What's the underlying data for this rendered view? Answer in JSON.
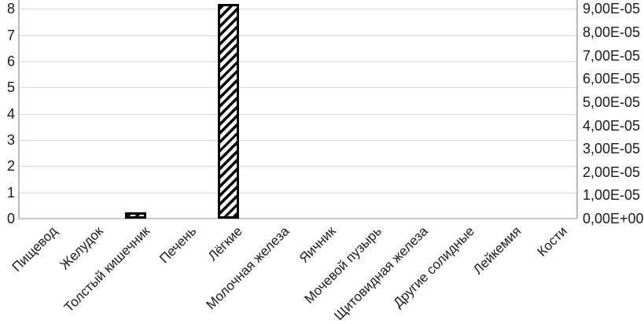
{
  "chart_data": {
    "type": "bar",
    "title": "",
    "xlabel": "",
    "ylabel": "",
    "categories": [
      "Пищевод",
      "Желудок",
      "Толстый кишечник",
      "Печень",
      "Лёгкие",
      "Молочная железа",
      "Яичник",
      "Мочевой пузырь",
      "Щитовидная железа",
      "Другие солидные",
      "Лейкемия",
      "Кости"
    ],
    "values": [
      0,
      0,
      0.25,
      0,
      8.2,
      0,
      0,
      0,
      0,
      0,
      0,
      0
    ],
    "series_note": "single hatched bar series; only Толстый кишечник (~0.25) and Лёгкие (~8.2, overshooting top gridline) are non-zero",
    "left_axis": {
      "min": 0,
      "max": 8,
      "tick_labels": [
        "0",
        "1",
        "2",
        "3",
        "4",
        "5",
        "6",
        "7",
        "8"
      ]
    },
    "right_axis": {
      "min": 0,
      "max": 9e-05,
      "tick_labels": [
        "0,00E+00",
        "1,00E-05",
        "2,00E-05",
        "3,00E-05",
        "4,00E-05",
        "5,00E-05",
        "6,00E-05",
        "7,00E-05",
        "8,00E-05",
        "9,00E-05"
      ]
    },
    "grid": true,
    "legend": "none",
    "category_label_rotation_deg": 45,
    "bar_style": {
      "fill": "#ffffff",
      "stroke": "#000000",
      "hatch": "wide-upward-diagonal"
    },
    "colors": {
      "background": "#ffffff",
      "gridline": "#d9d9d9",
      "axis_line": "#b9b9b9",
      "text": "#1a1a1a",
      "bar_stroke": "#000000"
    }
  }
}
